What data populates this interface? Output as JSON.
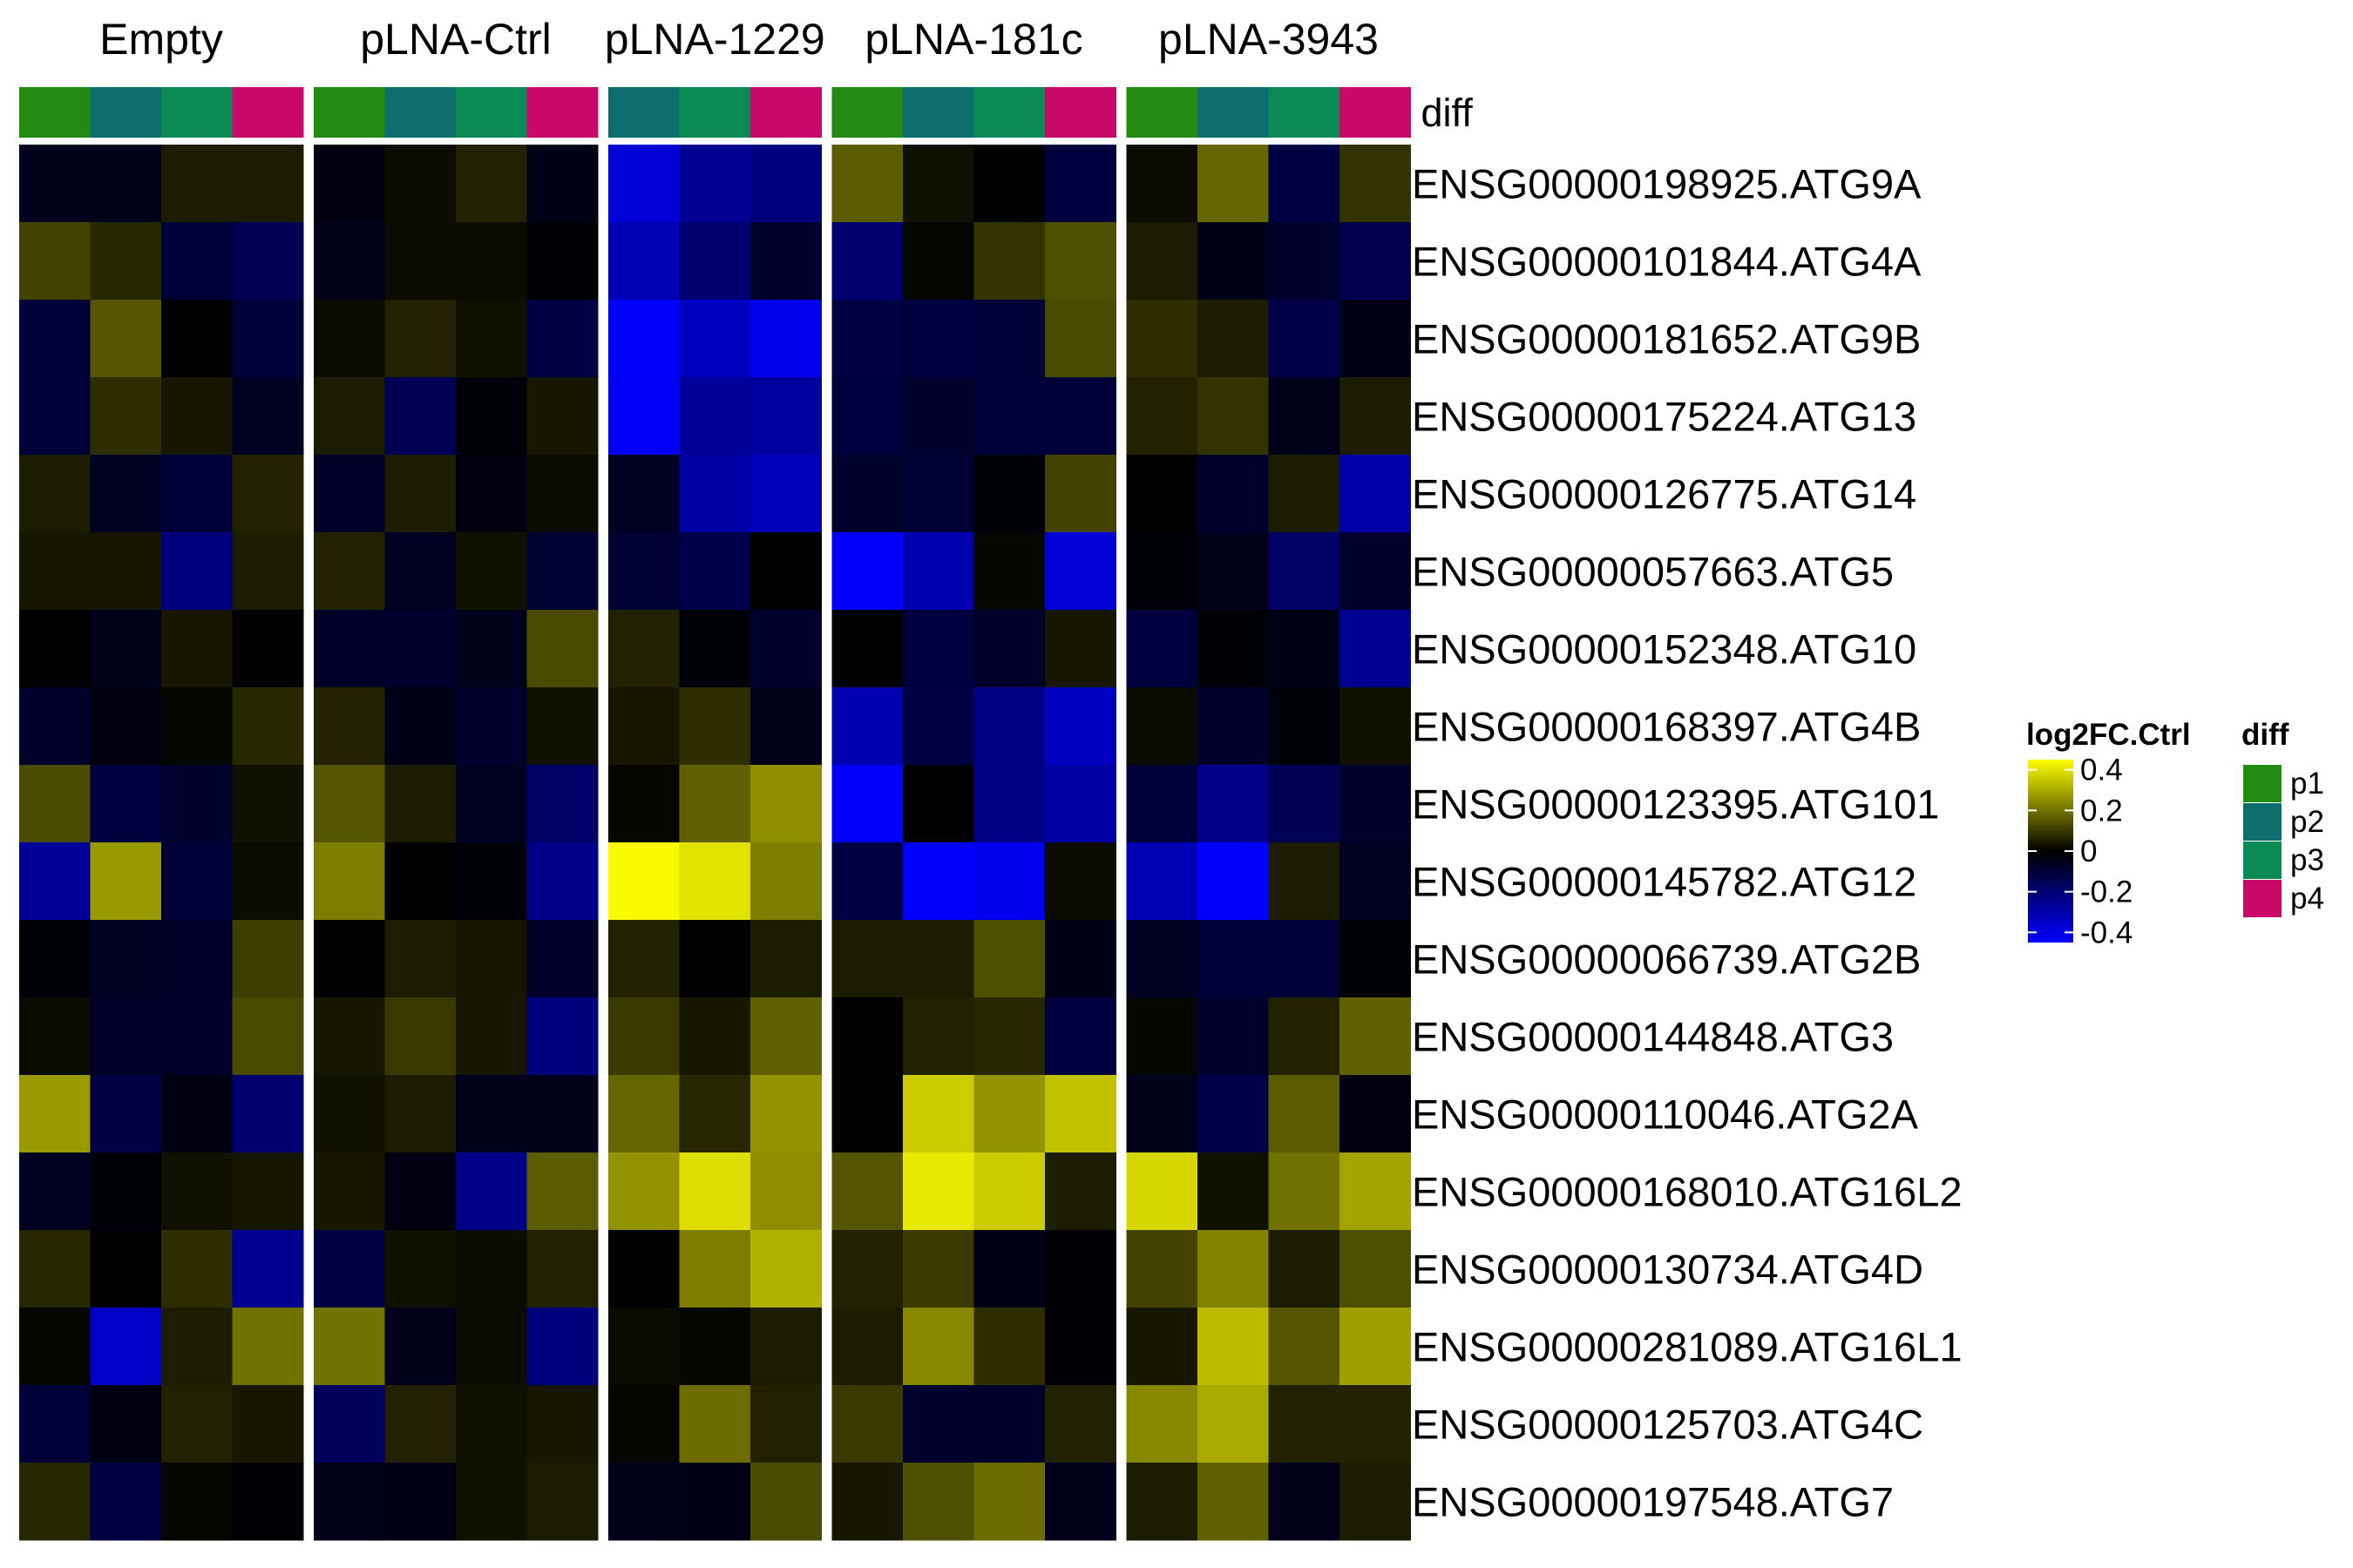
{
  "chart_data": {
    "type": "heatmap",
    "column_groups": [
      {
        "name": "Empty",
        "columns": [
          "p1",
          "p2",
          "p3",
          "p4"
        ]
      },
      {
        "name": "pLNA-Ctrl",
        "columns": [
          "p1",
          "p2",
          "p3",
          "p4"
        ]
      },
      {
        "name": "pLNA-1229",
        "columns": [
          "p2",
          "p3",
          "p4"
        ]
      },
      {
        "name": "pLNA-181c",
        "columns": [
          "p1",
          "p2",
          "p3",
          "p4"
        ]
      },
      {
        "name": "pLNA-3943",
        "columns": [
          "p1",
          "p2",
          "p3",
          "p4"
        ]
      }
    ],
    "annotation": {
      "name": "diff",
      "levels": [
        "p1",
        "p2",
        "p3",
        "p4"
      ],
      "colors": {
        "p1": "#238b12",
        "p2": "#0e6e6e",
        "p3": "#0a8a55",
        "p4": "#c8096a"
      }
    },
    "rows": [
      "ENSG00000198925.ATG9A",
      "ENSG00000101844.ATG4A",
      "ENSG00000181652.ATG9B",
      "ENSG00000175224.ATG13",
      "ENSG00000126775.ATG14",
      "ENSG00000057663.ATG5",
      "ENSG00000152348.ATG10",
      "ENSG00000168397.ATG4B",
      "ENSG00000123395.ATG101",
      "ENSG00000145782.ATG12",
      "ENSG00000066739.ATG2B",
      "ENSG00000144848.ATG3",
      "ENSG00000110046.ATG2A",
      "ENSG00000168010.ATG16L2",
      "ENSG00000130734.ATG4D",
      "ENSG00000281089.ATG16L1",
      "ENSG00000125703.ATG4C",
      "ENSG00000197548.ATG7"
    ],
    "values": [
      [
        -0.05,
        -0.05,
        0.05,
        0.05,
        -0.03,
        0.02,
        0.06,
        -0.04,
        -0.38,
        -0.26,
        -0.22,
        0.16,
        0.03,
        0.0,
        -0.11,
        0.02,
        0.18,
        -0.12,
        0.09
      ],
      [
        0.12,
        0.07,
        -0.1,
        -0.15,
        -0.05,
        0.02,
        0.02,
        -0.01,
        -0.32,
        -0.2,
        -0.08,
        -0.2,
        0.01,
        0.09,
        0.14,
        0.05,
        -0.04,
        -0.08,
        -0.14
      ],
      [
        -0.1,
        0.15,
        0.0,
        -0.1,
        0.02,
        0.06,
        0.03,
        -0.12,
        -0.52,
        -0.34,
        -0.42,
        -0.12,
        -0.11,
        -0.1,
        0.13,
        0.08,
        0.05,
        -0.13,
        -0.04
      ],
      [
        -0.1,
        0.08,
        0.04,
        -0.06,
        0.05,
        -0.15,
        -0.02,
        0.04,
        -0.44,
        -0.27,
        -0.28,
        -0.11,
        -0.08,
        -0.1,
        -0.1,
        0.06,
        0.09,
        -0.05,
        0.05
      ],
      [
        0.05,
        -0.06,
        -0.1,
        0.06,
        -0.07,
        0.05,
        -0.03,
        0.02,
        -0.06,
        -0.29,
        -0.33,
        -0.08,
        -0.09,
        -0.02,
        0.12,
        0.0,
        -0.08,
        0.05,
        -0.3
      ],
      [
        0.04,
        0.04,
        -0.22,
        0.05,
        0.06,
        -0.06,
        0.03,
        -0.09,
        -0.09,
        -0.13,
        0.0,
        -0.5,
        -0.31,
        0.01,
        -0.38,
        -0.02,
        -0.05,
        -0.18,
        -0.08
      ],
      [
        0.0,
        -0.05,
        0.04,
        0.0,
        -0.07,
        -0.08,
        -0.05,
        0.13,
        0.06,
        -0.02,
        -0.08,
        0.0,
        -0.11,
        -0.07,
        0.04,
        -0.11,
        -0.01,
        -0.04,
        -0.26
      ],
      [
        -0.07,
        -0.03,
        0.01,
        0.07,
        0.06,
        -0.04,
        -0.08,
        0.03,
        0.04,
        0.08,
        -0.05,
        -0.31,
        -0.12,
        -0.23,
        -0.34,
        0.02,
        -0.07,
        -0.02,
        0.03
      ],
      [
        0.13,
        -0.11,
        -0.08,
        0.03,
        0.15,
        0.05,
        -0.06,
        -0.18,
        0.01,
        0.17,
        0.25,
        -0.58,
        0.0,
        -0.23,
        -0.29,
        -0.1,
        -0.24,
        -0.15,
        -0.08
      ],
      [
        -0.27,
        0.27,
        -0.1,
        0.02,
        0.22,
        0.0,
        -0.02,
        -0.24,
        0.44,
        0.4,
        0.22,
        -0.12,
        -0.5,
        -0.42,
        0.02,
        -0.32,
        -0.46,
        0.05,
        -0.06
      ],
      [
        -0.02,
        -0.06,
        -0.07,
        0.11,
        0.0,
        0.05,
        0.04,
        -0.07,
        0.06,
        0.0,
        0.05,
        0.05,
        0.05,
        0.14,
        -0.04,
        -0.06,
        -0.1,
        -0.1,
        -0.02
      ],
      [
        0.02,
        -0.07,
        -0.07,
        0.13,
        0.04,
        0.1,
        0.04,
        -0.22,
        0.1,
        0.04,
        0.17,
        0.0,
        0.06,
        0.07,
        -0.11,
        0.01,
        -0.08,
        0.06,
        0.17
      ],
      [
        0.27,
        -0.12,
        -0.03,
        -0.2,
        0.03,
        0.05,
        -0.05,
        -0.05,
        0.18,
        0.07,
        0.26,
        0.0,
        0.36,
        0.26,
        0.34,
        -0.05,
        -0.13,
        0.16,
        -0.03
      ],
      [
        -0.06,
        -0.02,
        0.03,
        0.04,
        0.04,
        -0.03,
        -0.24,
        0.16,
        0.26,
        0.39,
        0.25,
        0.15,
        0.41,
        0.36,
        0.05,
        0.38,
        0.03,
        0.2,
        0.29
      ],
      [
        0.07,
        0.0,
        0.08,
        -0.25,
        -0.12,
        0.03,
        0.02,
        0.06,
        0.0,
        0.22,
        0.31,
        0.06,
        0.1,
        -0.04,
        -0.01,
        0.12,
        0.23,
        0.05,
        0.14
      ],
      [
        0.01,
        -0.35,
        0.05,
        0.2,
        0.2,
        -0.05,
        0.02,
        -0.22,
        0.02,
        0.01,
        0.05,
        0.05,
        0.24,
        0.08,
        -0.01,
        0.04,
        0.33,
        0.15,
        0.28
      ],
      [
        -0.1,
        -0.03,
        0.06,
        0.04,
        -0.16,
        0.06,
        0.03,
        0.04,
        0.01,
        0.19,
        0.06,
        0.1,
        -0.08,
        -0.08,
        0.06,
        0.24,
        0.3,
        0.06,
        0.06
      ],
      [
        0.07,
        -0.12,
        0.01,
        -0.01,
        -0.05,
        -0.04,
        0.03,
        0.05,
        -0.05,
        -0.04,
        0.13,
        0.04,
        0.14,
        0.19,
        -0.05,
        0.05,
        0.17,
        -0.05,
        0.05
      ]
    ],
    "color_scale": {
      "title": "log2FC.Ctrl",
      "ticks": [
        "0.4",
        "0.2",
        "0",
        "-0.2",
        "-0.4"
      ],
      "tick_values": [
        0.4,
        0.2,
        0,
        -0.2,
        -0.4
      ],
      "range": [
        -0.45,
        0.45
      ],
      "low_color": "#0000ff",
      "mid_color": "#000000",
      "high_color": "#ffff00"
    },
    "legend_diff": {
      "title": "diff",
      "items": [
        "p1",
        "p2",
        "p3",
        "p4"
      ]
    }
  }
}
